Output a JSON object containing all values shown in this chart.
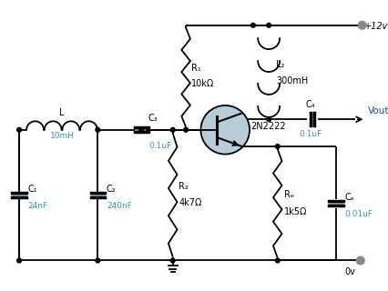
{
  "bg_color": "#ffffff",
  "line_color": "#000000",
  "component_colors": {
    "capacitor_fill": "#7ab4c8",
    "transistor_fill": "#b8cdd8",
    "node_dot": "#000000",
    "terminal_dot": "#888888"
  },
  "labels": {
    "vcc": "+12v",
    "gnd": "0v",
    "vout": "Vout",
    "R1": "R₁",
    "R1_val": "10kΩ",
    "R2": "R₂",
    "R2_val": "4k7Ω",
    "RE": "Rₑ",
    "RE_val": "1k5Ω",
    "L": "L",
    "L_val": "10mH",
    "L2": "L₂",
    "L2_val": "300mH",
    "C1": "C₁",
    "C1_val": "24nF",
    "C2": "C₂",
    "C2_val": "240nF",
    "C3": "C₃",
    "C3_val": "0.1uF",
    "C4": "C₄",
    "C4_val": "0.1uF",
    "CE": "Cₑ",
    "CE_val": "0.01uF",
    "transistor": "2N2222"
  },
  "font_size": 7.0
}
